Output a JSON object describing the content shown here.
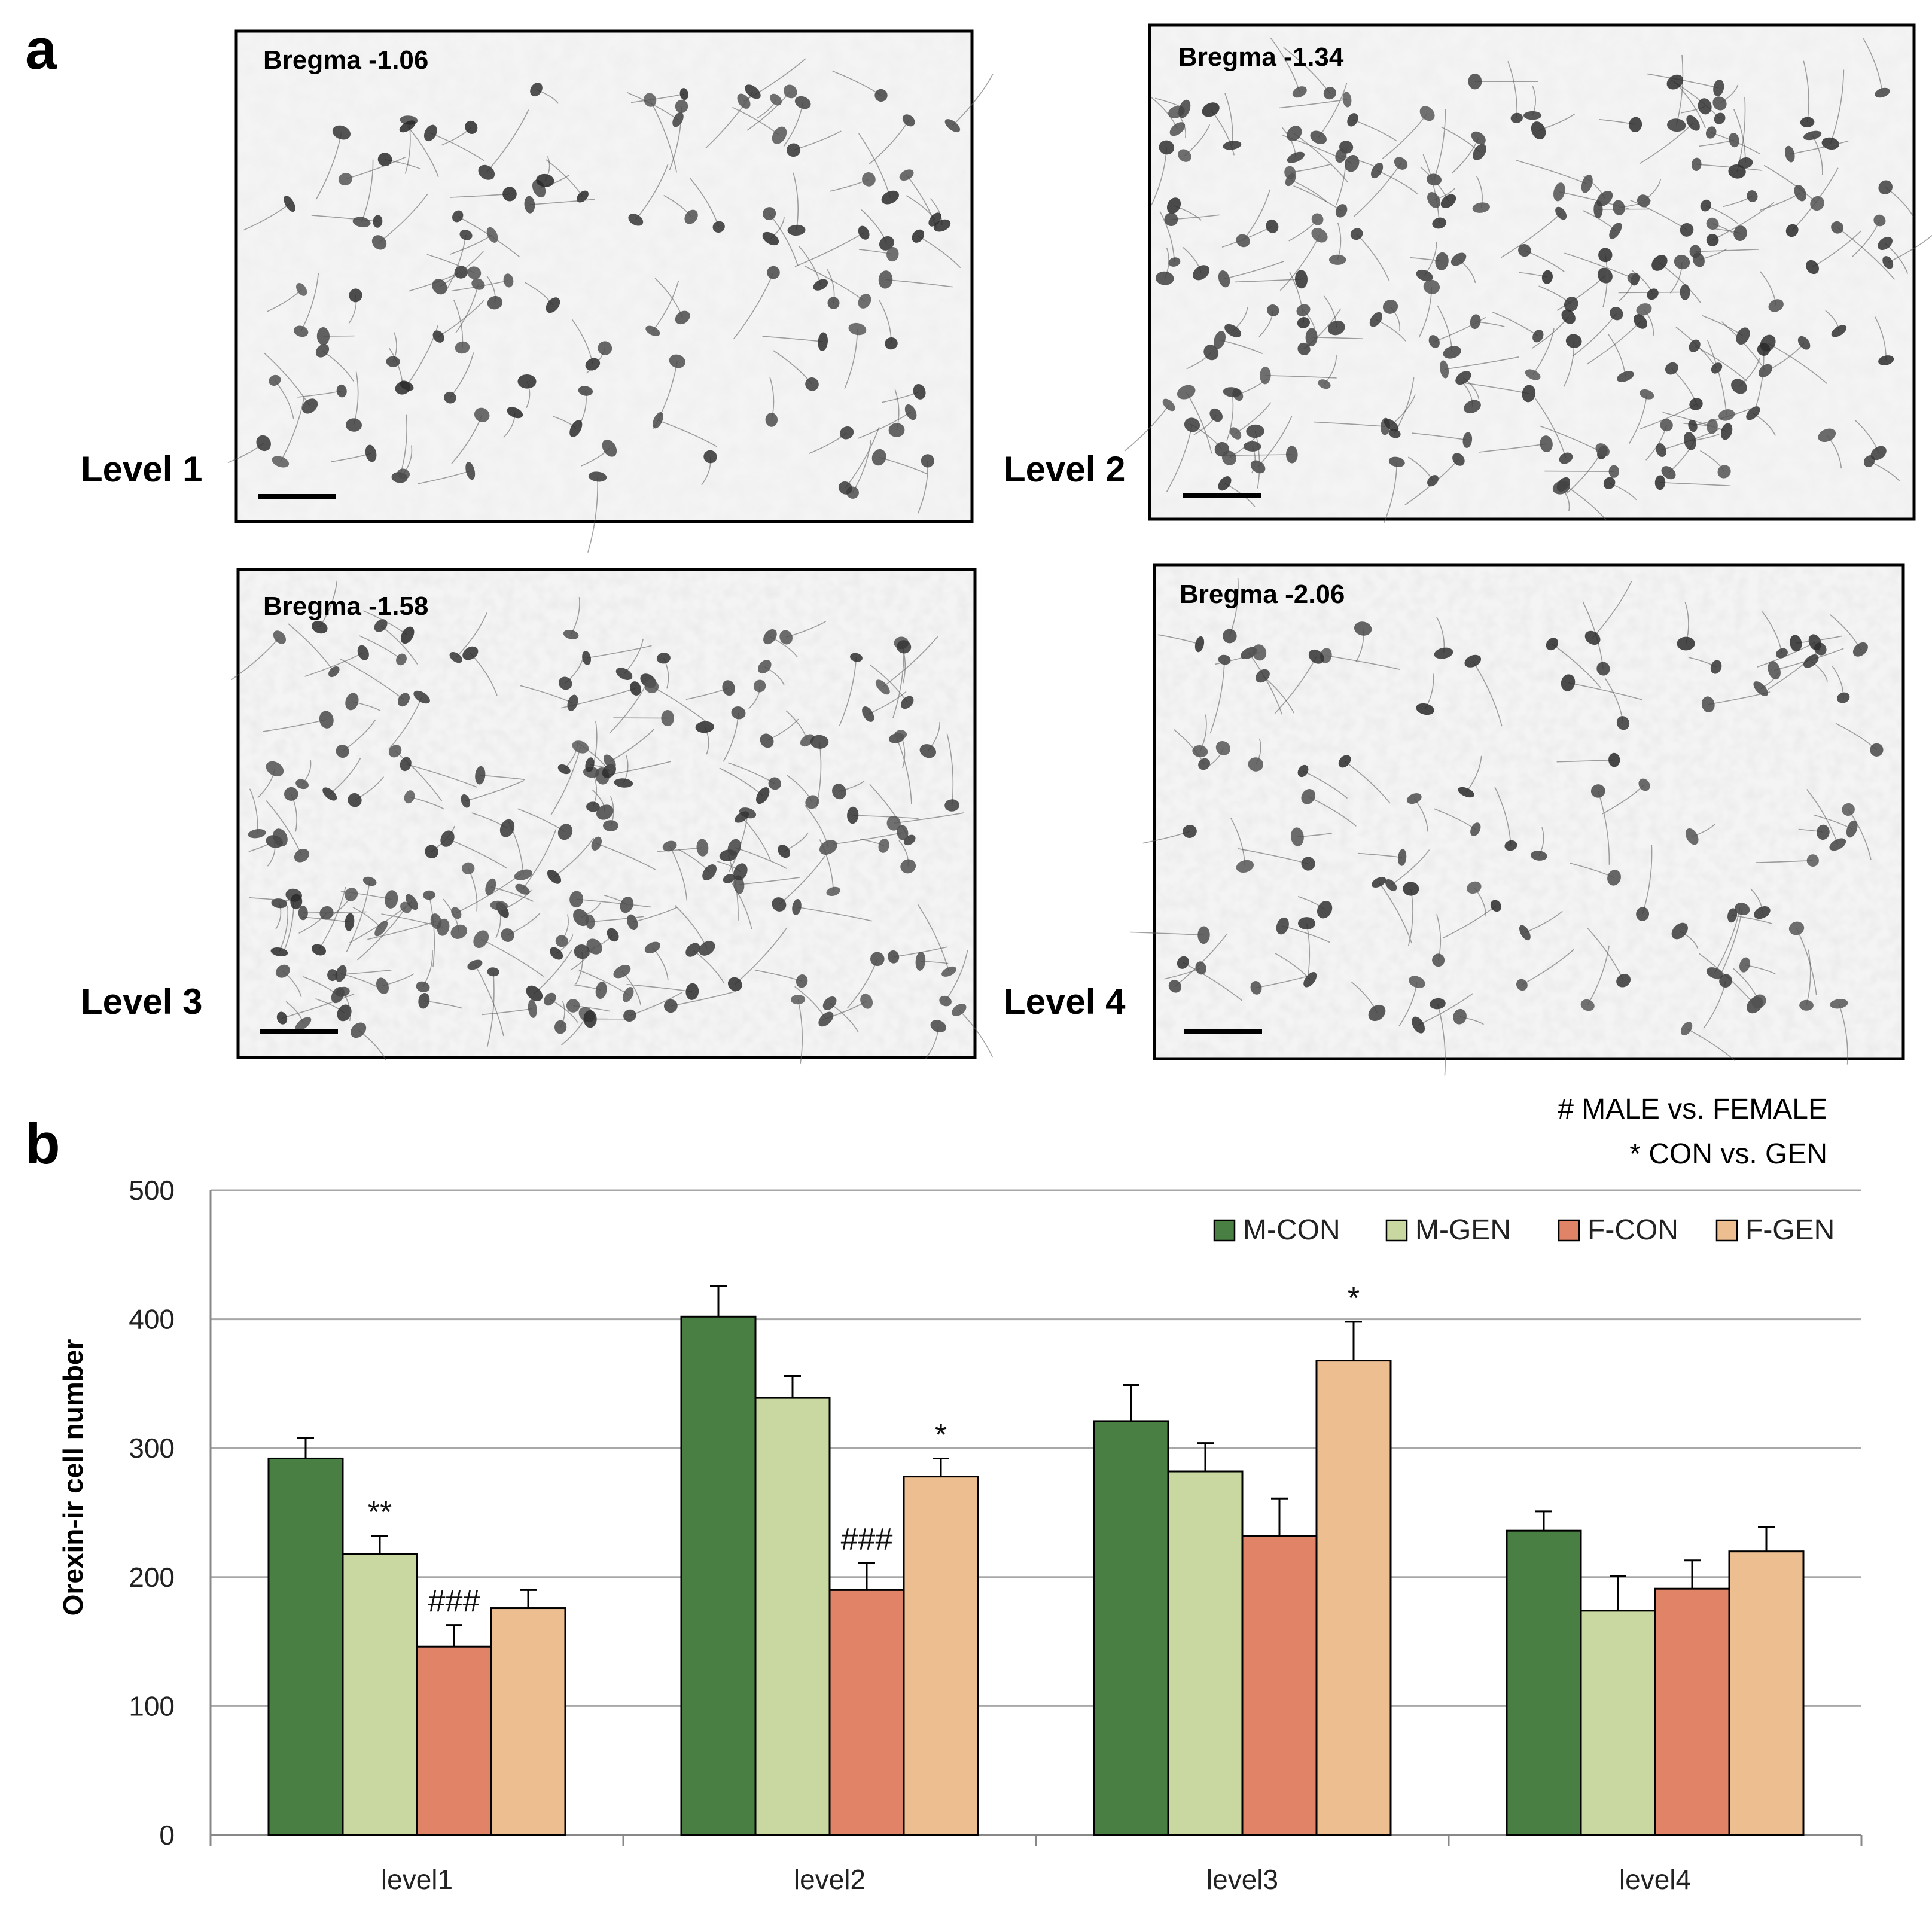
{
  "panel_a": {
    "letter": "a",
    "micrographs": [
      {
        "level_label": "Level 1",
        "bregma": "Bregma -1.06"
      },
      {
        "level_label": "Level 2",
        "bregma": "Bregma -1.34"
      },
      {
        "level_label": "Level 3",
        "bregma": "Bregma -1.58"
      },
      {
        "level_label": "Level 4",
        "bregma": "Bregma -2.06"
      }
    ]
  },
  "panel_b": {
    "letter": "b",
    "notes": [
      "# MALE vs. FEMALE",
      "* CON vs. GEN"
    ]
  },
  "chart_data": {
    "type": "bar",
    "title": "",
    "xlabel": "",
    "ylabel": "Orexin-ir cell number",
    "ylim": [
      0,
      500
    ],
    "yticks": [
      0,
      100,
      200,
      300,
      400,
      500
    ],
    "grid": true,
    "legend_position": "top-right",
    "categories": [
      "level1",
      "level2",
      "level3",
      "level4"
    ],
    "series": [
      {
        "name": "M-CON",
        "color": "#4a7f44",
        "values": [
          292,
          402,
          321,
          236
        ],
        "errors": [
          16,
          24,
          28,
          15
        ]
      },
      {
        "name": "M-GEN",
        "color": "#c8d8a0",
        "values": [
          218,
          339,
          282,
          174
        ],
        "errors": [
          14,
          17,
          22,
          27
        ]
      },
      {
        "name": "F-CON",
        "color": "#e08366",
        "values": [
          146,
          190,
          232,
          191
        ],
        "errors": [
          17,
          21,
          29,
          22
        ]
      },
      {
        "name": "F-GEN",
        "color": "#edbe90",
        "values": [
          176,
          278,
          368,
          220
        ],
        "errors": [
          14,
          14,
          30,
          19
        ]
      }
    ],
    "annotations": [
      {
        "category": "level1",
        "series": "M-GEN",
        "text": "**"
      },
      {
        "category": "level1",
        "series": "F-CON",
        "text": "###"
      },
      {
        "category": "level2",
        "series": "F-CON",
        "text": "###"
      },
      {
        "category": "level2",
        "series": "F-GEN",
        "text": "*"
      },
      {
        "category": "level3",
        "series": "F-GEN",
        "text": "*"
      }
    ]
  }
}
